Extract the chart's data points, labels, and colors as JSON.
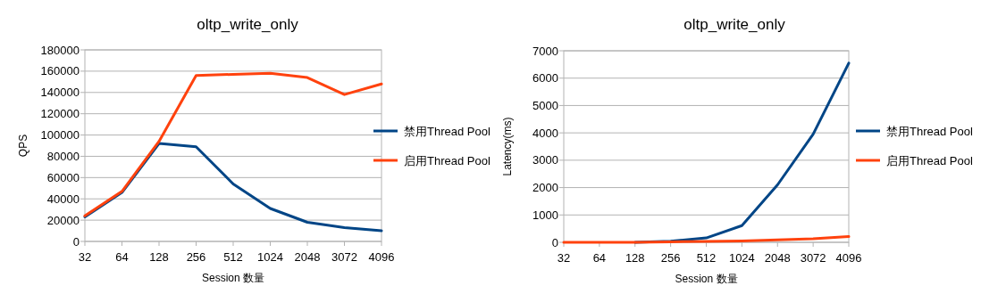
{
  "chart_data": [
    {
      "type": "line",
      "title": "oltp_write_only",
      "xlabel": "Session 数量",
      "ylabel": "QPS",
      "categories": [
        "32",
        "64",
        "128",
        "256",
        "512",
        "1024",
        "2048",
        "3072",
        "4096"
      ],
      "series": [
        {
          "name": "禁用Thread Pool",
          "color": "#004586",
          "values": [
            23000,
            46000,
            92000,
            89000,
            54000,
            31000,
            18000,
            13000,
            10000
          ]
        },
        {
          "name": "启用Thread Pool",
          "color": "#ff420e",
          "values": [
            24000,
            47000,
            94000,
            156000,
            157000,
            158000,
            154000,
            138000,
            148000
          ]
        }
      ],
      "ylim": [
        0,
        180000
      ],
      "yticks": [
        0,
        20000,
        40000,
        60000,
        80000,
        100000,
        120000,
        140000,
        160000,
        180000
      ],
      "grid": "y",
      "legend": "right",
      "marker": "none",
      "line_style": "solid"
    },
    {
      "type": "line",
      "title": "oltp_write_only",
      "xlabel": "Session 数量",
      "ylabel": "Latency(ms)",
      "categories": [
        "32",
        "64",
        "128",
        "256",
        "512",
        "1024",
        "2048",
        "3072",
        "4096"
      ],
      "series": [
        {
          "name": "禁用Thread Pool",
          "color": "#004586",
          "values": [
            null,
            null,
            0,
            40,
            160,
            610,
            2100,
            3950,
            6550
          ]
        },
        {
          "name": "启用Thread Pool",
          "color": "#ff420e",
          "values": [
            0,
            0,
            0,
            20,
            30,
            50,
            90,
            130,
            210
          ]
        }
      ],
      "ylim": [
        0,
        7000
      ],
      "yticks": [
        0,
        1000,
        2000,
        3000,
        4000,
        5000,
        6000,
        7000
      ],
      "grid": "y",
      "legend": "right",
      "marker": "none",
      "line_style": "solid"
    }
  ]
}
